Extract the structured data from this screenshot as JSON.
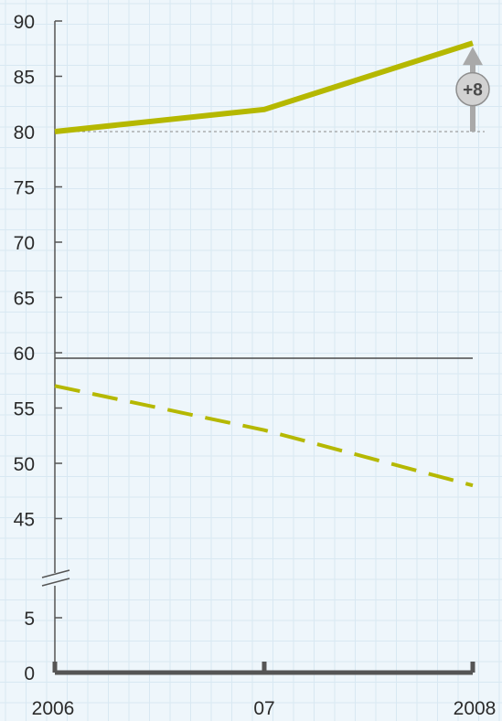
{
  "chart_data": {
    "type": "line",
    "x_categories": [
      "2006",
      "07",
      "2008"
    ],
    "y_axis": {
      "broken": true,
      "upper_segment_range": [
        45,
        90
      ],
      "lower_segment_range": [
        0,
        5
      ],
      "ticks": [
        0,
        5,
        45,
        50,
        55,
        60,
        65,
        70,
        75,
        80,
        85,
        90
      ]
    },
    "series": [
      {
        "style": "solid",
        "color": "#b5b800",
        "values": [
          80,
          82,
          88
        ]
      },
      {
        "style": "dashed",
        "color": "#b5b800",
        "values": [
          57,
          53,
          48
        ]
      }
    ],
    "reference_lines": [
      {
        "y": 80,
        "style": "dotted"
      },
      {
        "y": 59.5,
        "style": "solid"
      }
    ],
    "annotation": {
      "label": "+8",
      "from": 80,
      "to": 88,
      "at_x": "2008"
    },
    "grid": true,
    "colors": {
      "background": "#eef6fb",
      "grid": "#d8e8f2",
      "axis": "#555555",
      "series": "#b5b800",
      "annotation_arrow": "#a9a9a9",
      "annotation_circle": "#d2d2d2"
    }
  }
}
